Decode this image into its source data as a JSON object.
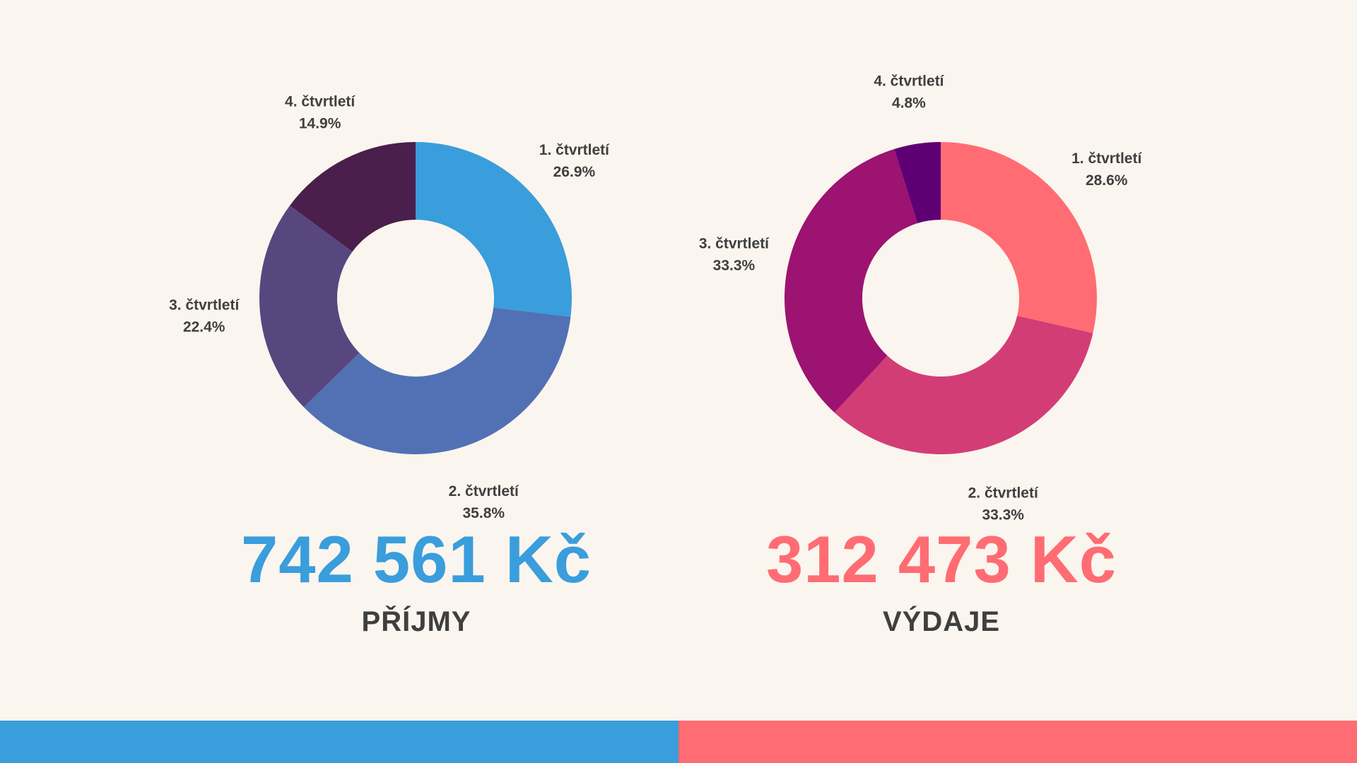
{
  "colors": {
    "background": "#faf5ee",
    "income_accent": "#3a9ddc",
    "expense_accent": "#ff6c73",
    "label_text": "#3f3f3f"
  },
  "income": {
    "total": "742 561 Kč",
    "caption": "PŘÍJMY"
  },
  "expense": {
    "total": "312 473 Kč",
    "caption": "VÝDAJE"
  },
  "chart_data": [
    {
      "type": "donut",
      "categories": [
        "1. čtvrtletí",
        "2. čtvrtletí",
        "3. čtvrtletí",
        "4. čtvrtletí"
      ],
      "values": [
        26.9,
        35.8,
        22.4,
        14.9
      ],
      "value_labels": [
        "26.9%",
        "35.8%",
        "22.4%",
        "14.9%"
      ],
      "colors": [
        "#3a9ddc",
        "#5271b4",
        "#57477e",
        "#4a1f4b"
      ],
      "start": "top, clockwise"
    },
    {
      "type": "donut",
      "categories": [
        "1. čtvrtletí",
        "2. čtvrtletí",
        "3. čtvrtletí",
        "4. čtvrtletí"
      ],
      "values": [
        28.6,
        33.3,
        33.3,
        4.8
      ],
      "value_labels": [
        "28.6%",
        "33.3%",
        "33.3%",
        "4.8%"
      ],
      "colors": [
        "#ff6c73",
        "#d33d76",
        "#9c1371",
        "#5e0073"
      ],
      "start": "top, clockwise"
    }
  ]
}
